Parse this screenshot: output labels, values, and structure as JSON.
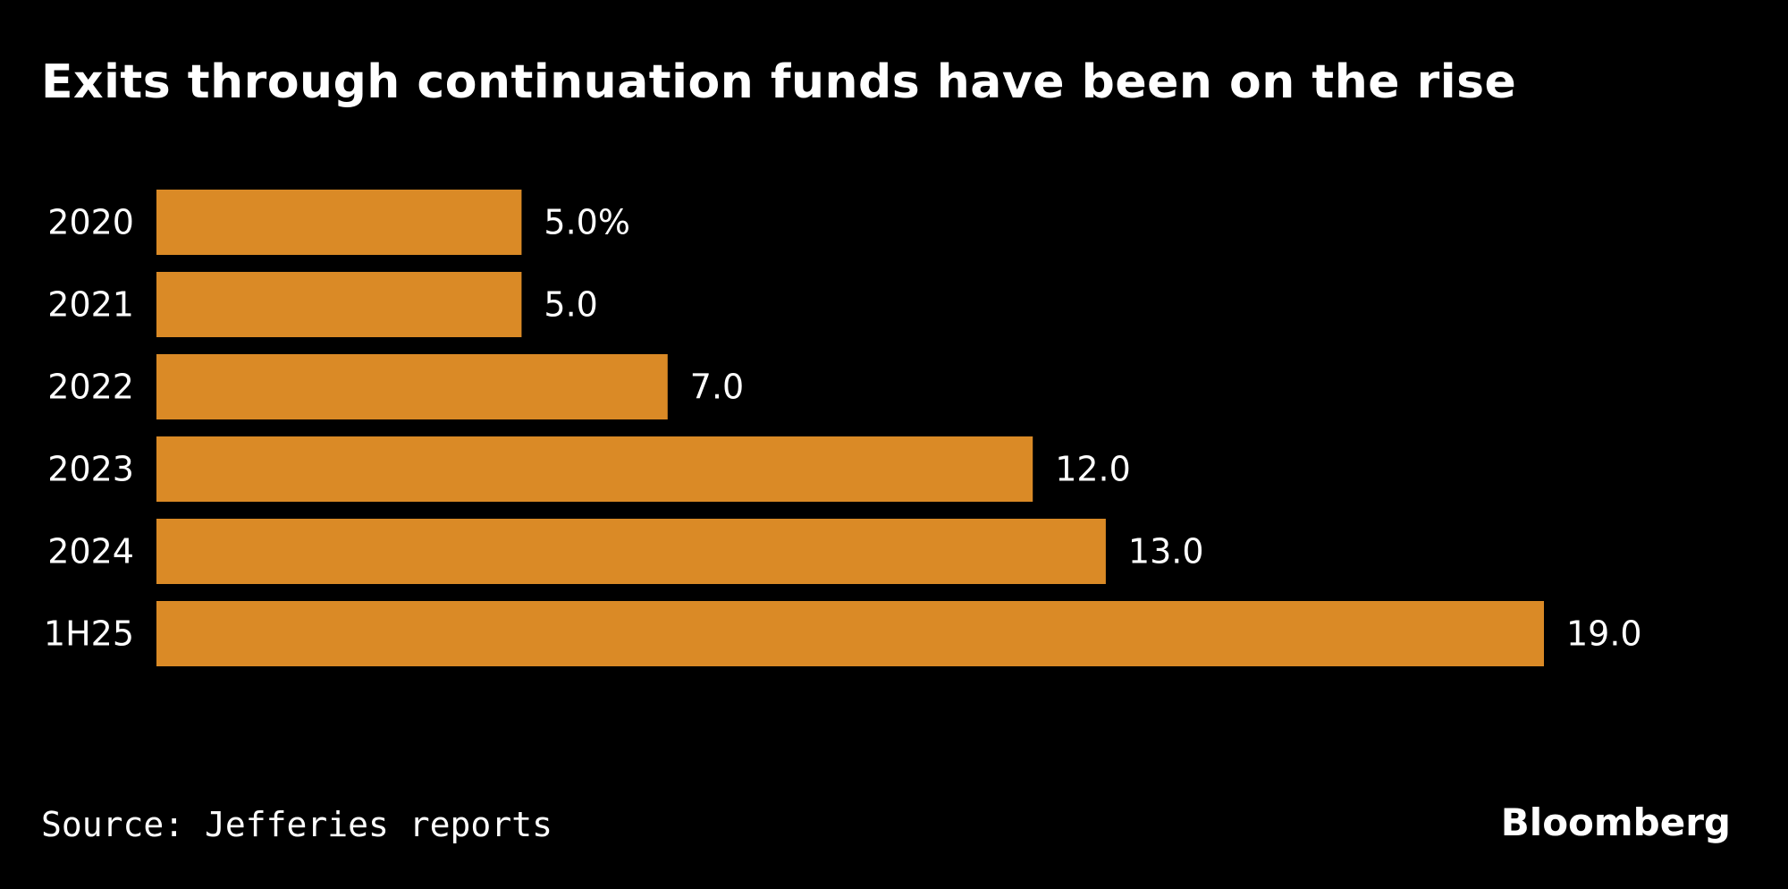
{
  "chart_data": {
    "type": "bar",
    "orientation": "horizontal",
    "title": "Exits through continuation funds have been on the rise",
    "categories": [
      "2020",
      "2021",
      "2022",
      "2023",
      "2024",
      "1H25"
    ],
    "values": [
      5.0,
      5.0,
      7.0,
      12.0,
      13.0,
      19.0
    ],
    "value_labels": [
      "5.0%",
      "5.0",
      "7.0",
      "12.0",
      "13.0",
      "19.0"
    ],
    "unit": "%",
    "xlim": [
      0,
      19
    ],
    "grid": false,
    "legend": "none",
    "bar_color": "#DA8A26",
    "background_color": "#000000",
    "text_color": "#FFFFFF"
  },
  "source": "Source: Jefferies reports",
  "brand": "Bloomberg"
}
